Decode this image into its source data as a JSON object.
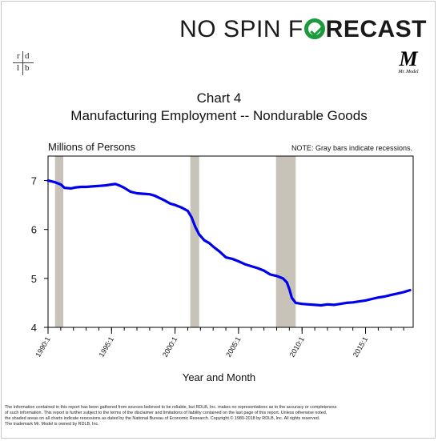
{
  "header": {
    "brand_part1": "NO SPIN F",
    "brand_part2": "RECAST",
    "brand_color": "#1c9a3c",
    "rdlb_letters": [
      "r",
      "d",
      "l",
      "b"
    ],
    "mr_model_letter": "M",
    "mr_model_caption": "Mr. Model"
  },
  "chart_note": "NOTE: Gray bars indicate recessions.",
  "footer": {
    "lines": [
      "The information contained in this report has been gathered from sources believed to be reliable, but RDLB, Inc. makes no representations as to the accuracy or completeness",
      "of such information. This report is further subject to the terms of the disclaimer and limitations of liability contained on the last page of this report. Unless otherwise noted,",
      "the shaded areas on all charts indicate recessions as dated by the National Bureau of Economic Research. Copyright © 1989-2018 by RDLB, Inc. All rights reserved.",
      "The trademark Mr. Model is owned by RDLB, Inc."
    ]
  },
  "chart_data": {
    "type": "line",
    "title": "Chart 4",
    "subtitle": "Manufacturing Employment -- Nondurable Goods",
    "ylabel": "Millions of Persons",
    "xlabel": "Year and Month",
    "ylim": [
      4,
      7.5
    ],
    "xlim": [
      1990.0,
      2018.75
    ],
    "y_ticks": [
      4,
      5,
      6,
      7
    ],
    "x_ticks": [
      {
        "value": 1990.0,
        "label": "1990:1"
      },
      {
        "value": 1995.0,
        "label": "1995:1"
      },
      {
        "value": 2000.0,
        "label": "2000:1"
      },
      {
        "value": 2005.0,
        "label": "2005:1"
      },
      {
        "value": 2010.0,
        "label": "2010:1"
      },
      {
        "value": 2015.0,
        "label": "2015:1"
      }
    ],
    "recessions": [
      [
        1990.55,
        1991.2
      ],
      [
        2001.2,
        2001.9
      ],
      [
        2007.95,
        2009.5
      ]
    ],
    "grid": false,
    "line_color": "#0000ee",
    "recession_color": "#c8c3b9",
    "series": [
      {
        "x": [
          1990.0,
          1990.5,
          1991.0,
          1991.3,
          1991.8,
          1992.2,
          1992.6,
          1993.0,
          1993.5,
          1994.0,
          1994.5,
          1995.0,
          1995.3,
          1995.7,
          1996.0,
          1996.5,
          1997.0,
          1997.5,
          1998.0,
          1998.4,
          1998.8,
          1999.2,
          1999.6,
          2000.0,
          2000.5,
          2001.0,
          2001.3,
          2001.6,
          2001.9,
          2002.3,
          2002.7,
          2003.0,
          2003.5,
          2004.0,
          2004.5,
          2005.0,
          2005.5,
          2006.0,
          2006.5,
          2007.0,
          2007.5,
          2008.0,
          2008.5,
          2008.8,
          2009.0,
          2009.2,
          2009.5,
          2010.0,
          2010.5,
          2011.0,
          2011.5,
          2012.0,
          2012.5,
          2013.0,
          2013.5,
          2014.0,
          2014.5,
          2015.0,
          2015.5,
          2016.0,
          2016.5,
          2017.0,
          2017.5,
          2018.0,
          2018.5
        ],
        "y": [
          7.0,
          6.97,
          6.92,
          6.85,
          6.84,
          6.86,
          6.87,
          6.87,
          6.88,
          6.89,
          6.9,
          6.92,
          6.93,
          6.89,
          6.85,
          6.77,
          6.74,
          6.73,
          6.72,
          6.69,
          6.64,
          6.59,
          6.53,
          6.5,
          6.45,
          6.38,
          6.25,
          6.05,
          5.9,
          5.78,
          5.72,
          5.65,
          5.55,
          5.43,
          5.4,
          5.35,
          5.29,
          5.25,
          5.21,
          5.16,
          5.08,
          5.05,
          5.0,
          4.92,
          4.78,
          4.6,
          4.5,
          4.48,
          4.47,
          4.46,
          4.45,
          4.47,
          4.46,
          4.48,
          4.5,
          4.51,
          4.53,
          4.55,
          4.58,
          4.61,
          4.63,
          4.66,
          4.69,
          4.72,
          4.76
        ]
      }
    ]
  }
}
